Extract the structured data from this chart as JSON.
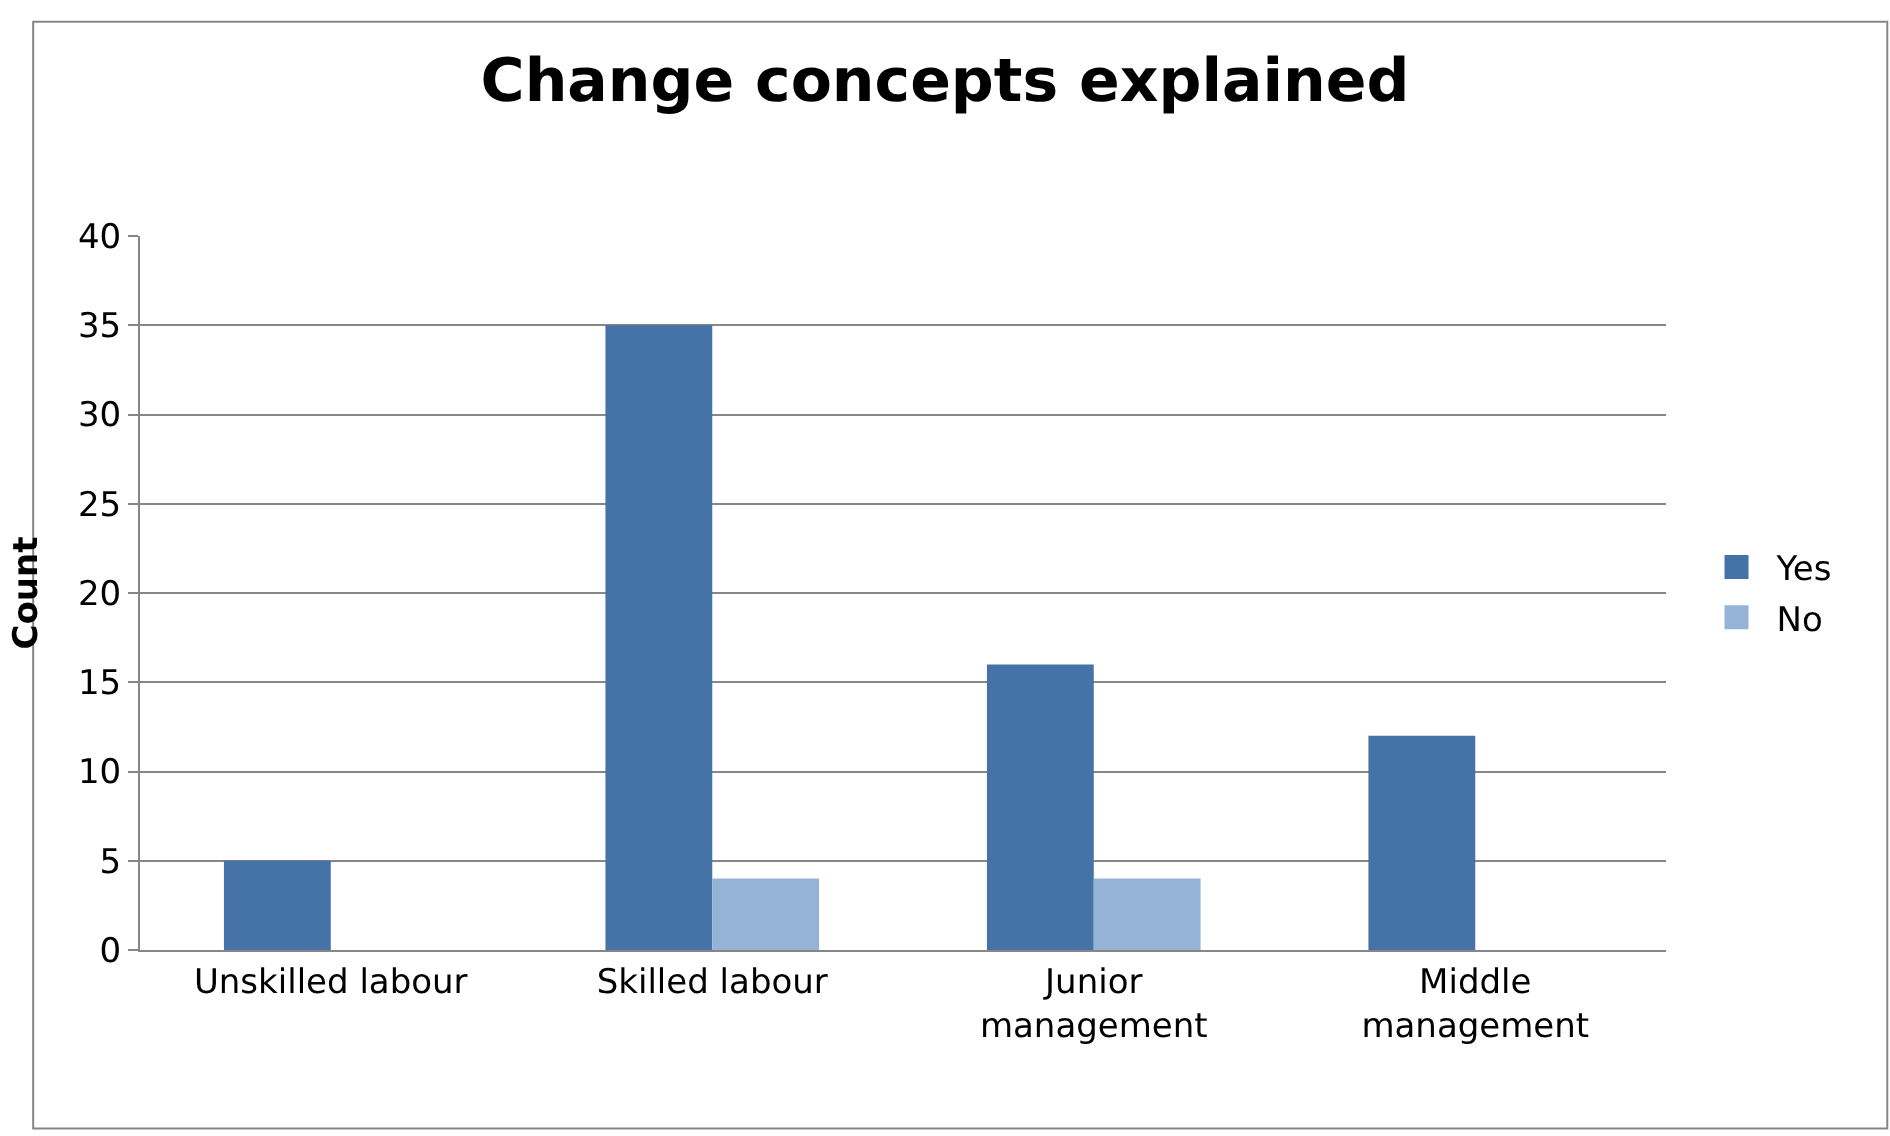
{
  "chart_data": {
    "type": "bar",
    "title": "Change concepts explained",
    "ylabel": "Count",
    "categories": [
      "Unskilled labour",
      "Skilled labour",
      "Junior management",
      "Middle management"
    ],
    "series": [
      {
        "name": "Yes",
        "color": "#4572a7",
        "values": [
          5,
          35,
          16,
          12
        ]
      },
      {
        "name": "No",
        "color": "#95b3d7",
        "values": [
          null,
          4,
          4,
          null
        ]
      }
    ],
    "ylim": [
      0,
      40
    ],
    "yticks": [
      0,
      5,
      10,
      15,
      20,
      25,
      30,
      35,
      40
    ],
    "grid": "y",
    "legend": "right"
  }
}
